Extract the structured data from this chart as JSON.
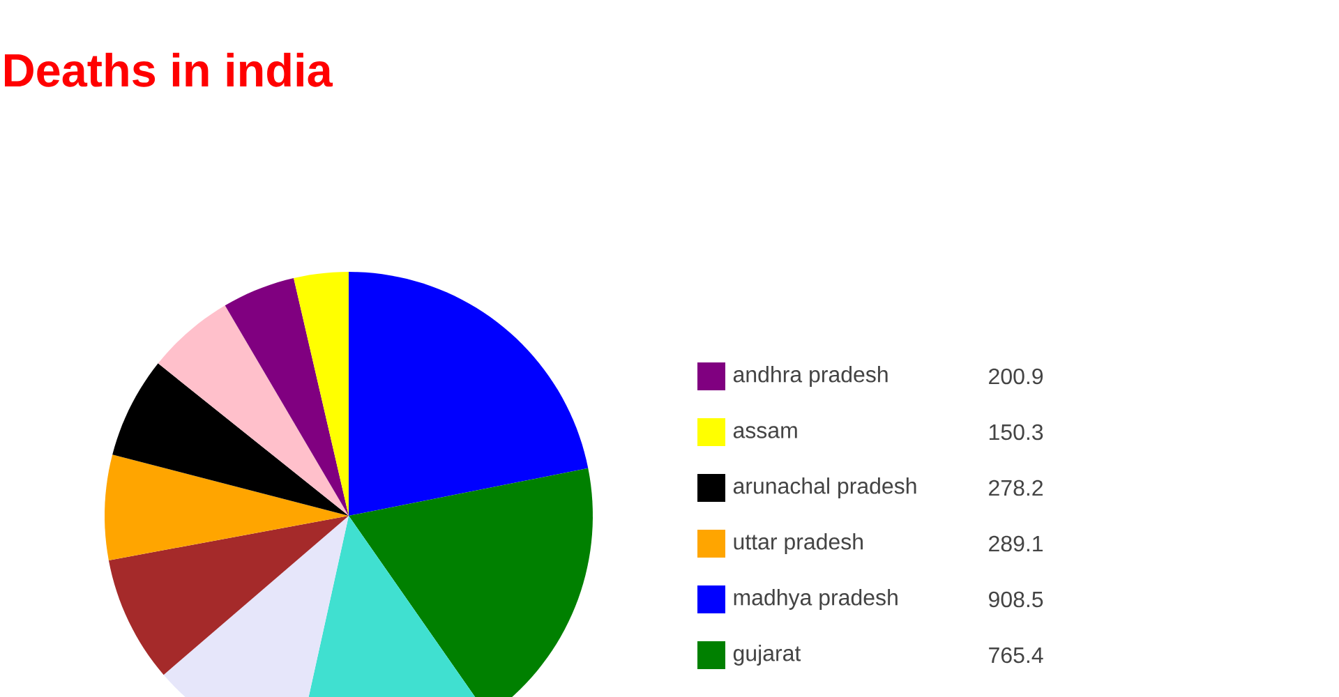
{
  "chart_data": {
    "type": "pie",
    "title": "Deaths in india",
    "categories": [
      "andhra pradesh",
      "assam",
      "arunachal pradesh",
      "uttar pradesh",
      "madhya pradesh",
      "gujarat",
      null,
      null,
      null,
      null
    ],
    "values": [
      200.9,
      150.3,
      278.2,
      289.1,
      908.5,
      765.4,
      546,
      425,
      348,
      241
    ],
    "value_labels": [
      "200.9",
      "150.3",
      "278.2",
      "289.1",
      "908.5",
      "765.4",
      null,
      null,
      null,
      null
    ],
    "colors": [
      "#800080",
      "#ffff00",
      "#000000",
      "#ffa500",
      "#0000ff",
      "#008000",
      "#40e0d0",
      "#e6e6fa",
      "#a52a2a",
      "#ffc0cb"
    ],
    "legend": "right"
  }
}
